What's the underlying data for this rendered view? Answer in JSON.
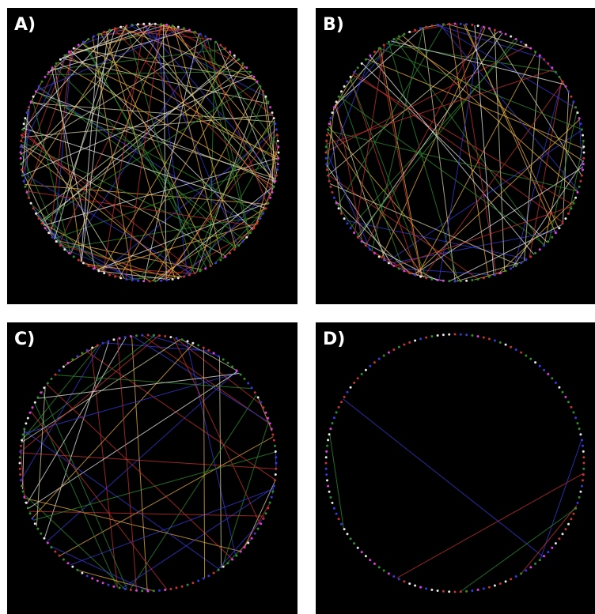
{
  "panels": [
    {
      "id": "panel-a",
      "label": "A)",
      "links": 150,
      "seed": 11
    },
    {
      "id": "panel-b",
      "label": "B)",
      "links": 95,
      "seed": 23
    },
    {
      "id": "panel-c",
      "label": "C)",
      "links": 55,
      "seed": 37
    },
    {
      "id": "panel-d",
      "label": "D)",
      "links": 6,
      "seed": 53
    }
  ],
  "colors": {
    "background": "#000000",
    "page": "#ffffff",
    "label": "#ffffff",
    "link_colors": [
      "#e8e8e8",
      "#d8d6a0",
      "#3a3ad8",
      "#2f8f2f",
      "#c83232",
      "#e8b040"
    ],
    "node_colors": [
      "#3a3ad8",
      "#2f8f2f",
      "#c83232",
      "#e040e0",
      "#e8e8e8"
    ]
  }
}
